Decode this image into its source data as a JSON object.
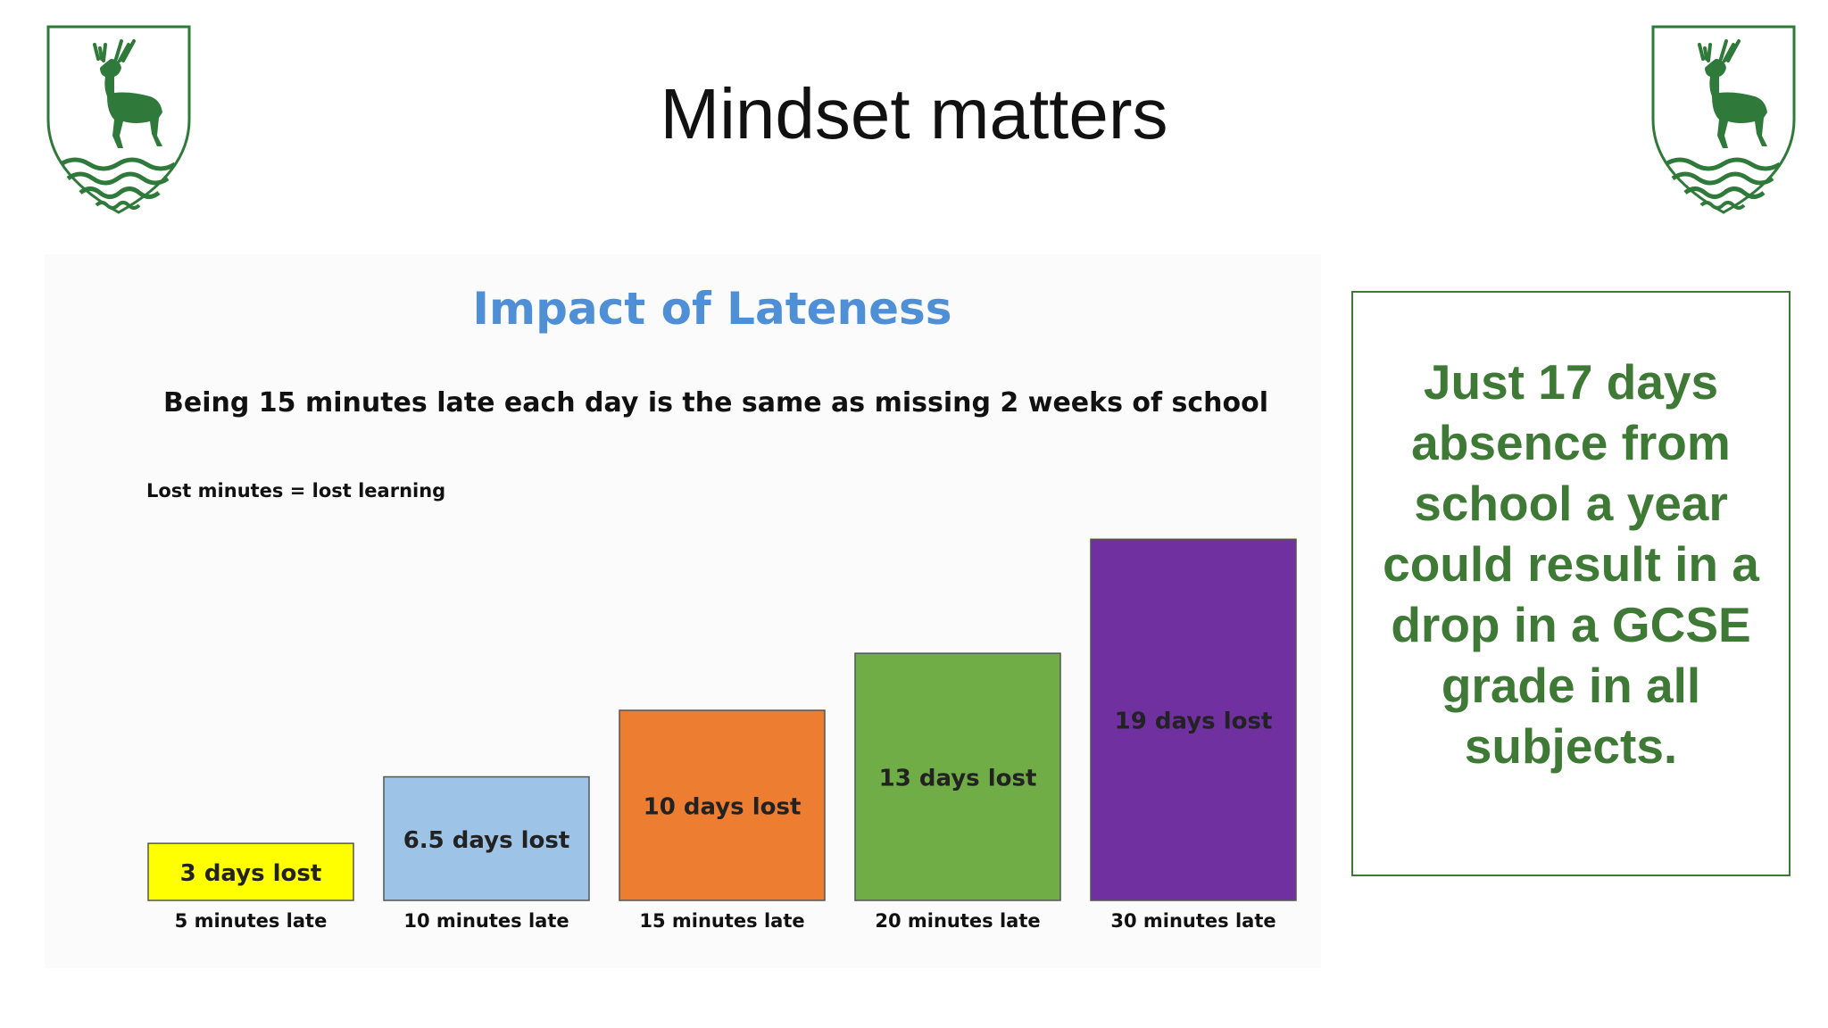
{
  "slide": {
    "title": "Mindset matters",
    "fact_box_text": "Just 17 days absence from school a year could result in a drop in a GCSE grade in all subjects.",
    "accent_color": "#3e7a35"
  },
  "crest": {
    "icon": "stag-shield-crest-icon",
    "color": "#2f7a3a"
  },
  "chart_data": {
    "type": "bar",
    "title": "Impact of Lateness",
    "subtitle": "Being 15 minutes late each day is the same as missing 2 weeks of school",
    "note": "Lost minutes = lost learning",
    "xlabel": "",
    "ylabel": "",
    "grid": false,
    "categories": [
      "5 minutes late",
      "10 minutes late",
      "15 minutes late",
      "20 minutes late",
      "30 minutes late"
    ],
    "values": [
      3,
      6.5,
      10,
      13,
      19
    ],
    "data_labels": [
      "3 days lost",
      "6.5 days lost",
      "10 days lost",
      "13 days lost",
      "19 days lost"
    ],
    "colors": [
      "#ffff00",
      "#9dc3e6",
      "#ed7d31",
      "#70ad47",
      "#7030a0"
    ]
  }
}
